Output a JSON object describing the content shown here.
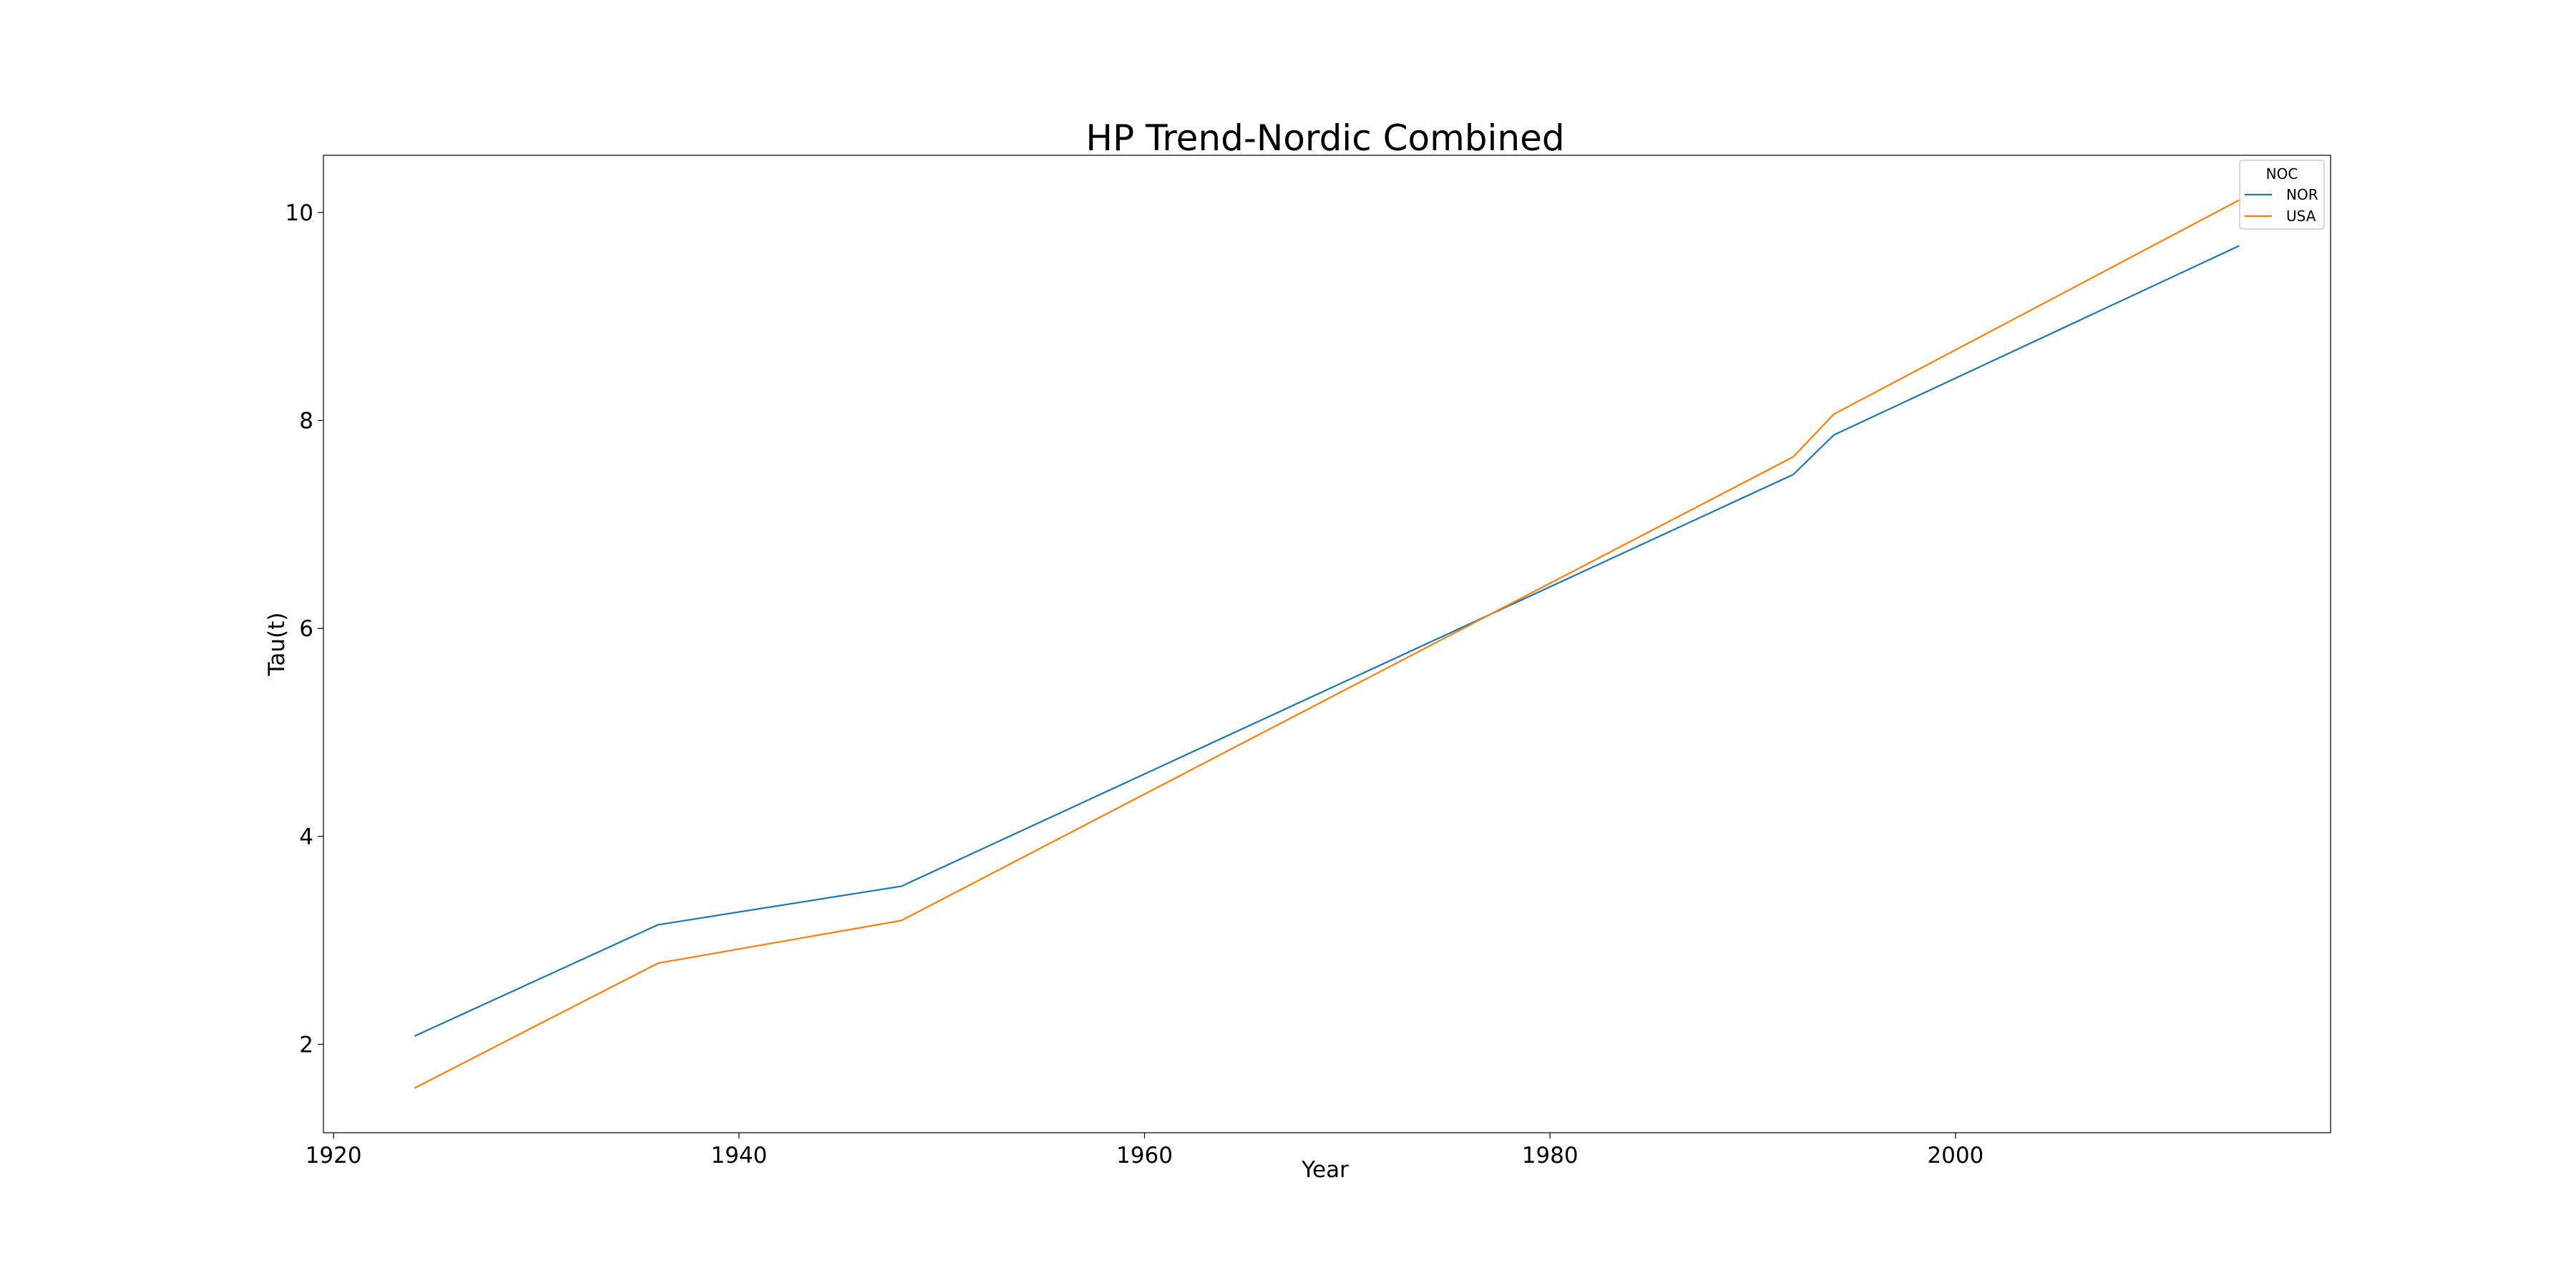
{
  "chart_data": {
    "type": "line",
    "title": "HP Trend-Nordic Combined",
    "xlabel": "Year",
    "ylabel": "Tau(t)",
    "xlim": [
      1919.5,
      2018.5
    ],
    "ylim": [
      1.15,
      10.55
    ],
    "xticks": [
      1920,
      1940,
      1960,
      1980,
      2000
    ],
    "yticks": [
      2,
      4,
      6,
      8,
      10
    ],
    "grid": false,
    "legend": {
      "title": "NOC",
      "placement": "top-right"
    },
    "series": [
      {
        "name": "NOR",
        "color": "#1f77b4",
        "x": [
          1924,
          1936,
          1948,
          1992,
          1994,
          2014
        ],
        "y": [
          2.08,
          3.15,
          3.52,
          7.48,
          7.86,
          9.68
        ]
      },
      {
        "name": "USA",
        "color": "#ff7f0e",
        "x": [
          1924,
          1936,
          1948,
          1992,
          1994,
          2014
        ],
        "y": [
          1.58,
          2.78,
          3.19,
          7.65,
          8.06,
          10.12
        ]
      }
    ]
  }
}
